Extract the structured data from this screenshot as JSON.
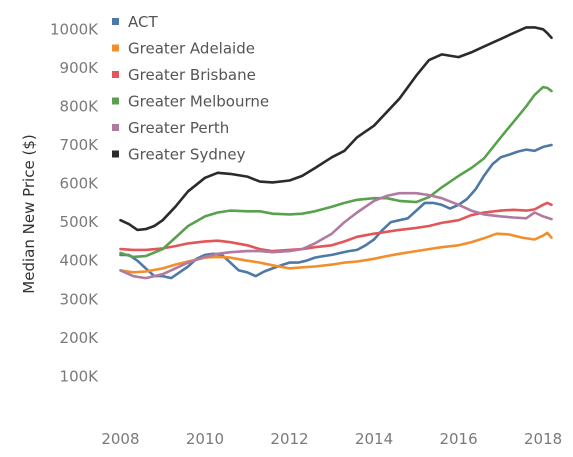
{
  "chart_data": {
    "type": "line",
    "title": "",
    "xlabel": "",
    "ylabel": "Median New Price ($)",
    "xlim": [
      2007.8,
      2018.4
    ],
    "ylim": [
      0,
      1050000
    ],
    "x_ticks": [
      {
        "value": 2008,
        "label": "2008"
      },
      {
        "value": 2010,
        "label": "2010"
      },
      {
        "value": 2012,
        "label": "2012"
      },
      {
        "value": 2014,
        "label": "2014"
      },
      {
        "value": 2016,
        "label": "2016"
      },
      {
        "value": 2018,
        "label": "2018"
      }
    ],
    "y_ticks": [
      {
        "value": 100000,
        "label": "100K"
      },
      {
        "value": 200000,
        "label": "200K"
      },
      {
        "value": 300000,
        "label": "300K"
      },
      {
        "value": 400000,
        "label": "400K"
      },
      {
        "value": 500000,
        "label": "500K"
      },
      {
        "value": 600000,
        "label": "600K"
      },
      {
        "value": 700000,
        "label": "700K"
      },
      {
        "value": 800000,
        "label": "800K"
      },
      {
        "value": 900000,
        "label": "900K"
      },
      {
        "value": 1000000,
        "label": "1000K"
      }
    ],
    "grid": false,
    "legend": "top-left",
    "series": [
      {
        "name": "ACT",
        "color": "#4e79a7",
        "points": [
          [
            2008.0,
            415000
          ],
          [
            2008.2,
            415000
          ],
          [
            2008.4,
            400000
          ],
          [
            2008.6,
            380000
          ],
          [
            2008.8,
            360000
          ],
          [
            2009.0,
            360000
          ],
          [
            2009.2,
            355000
          ],
          [
            2009.4,
            370000
          ],
          [
            2009.6,
            385000
          ],
          [
            2009.8,
            405000
          ],
          [
            2010.0,
            415000
          ],
          [
            2010.2,
            418000
          ],
          [
            2010.4,
            415000
          ],
          [
            2010.6,
            395000
          ],
          [
            2010.8,
            375000
          ],
          [
            2011.0,
            370000
          ],
          [
            2011.2,
            360000
          ],
          [
            2011.4,
            372000
          ],
          [
            2011.6,
            380000
          ],
          [
            2011.8,
            388000
          ],
          [
            2012.0,
            395000
          ],
          [
            2012.2,
            395000
          ],
          [
            2012.4,
            400000
          ],
          [
            2012.6,
            408000
          ],
          [
            2012.8,
            412000
          ],
          [
            2013.0,
            415000
          ],
          [
            2013.2,
            420000
          ],
          [
            2013.4,
            425000
          ],
          [
            2013.6,
            428000
          ],
          [
            2013.8,
            440000
          ],
          [
            2014.0,
            455000
          ],
          [
            2014.2,
            480000
          ],
          [
            2014.4,
            500000
          ],
          [
            2014.6,
            505000
          ],
          [
            2014.8,
            510000
          ],
          [
            2015.0,
            530000
          ],
          [
            2015.2,
            550000
          ],
          [
            2015.4,
            550000
          ],
          [
            2015.6,
            545000
          ],
          [
            2015.8,
            535000
          ],
          [
            2016.0,
            545000
          ],
          [
            2016.2,
            560000
          ],
          [
            2016.4,
            585000
          ],
          [
            2016.6,
            620000
          ],
          [
            2016.8,
            650000
          ],
          [
            2017.0,
            668000
          ],
          [
            2017.2,
            675000
          ],
          [
            2017.4,
            683000
          ],
          [
            2017.6,
            688000
          ],
          [
            2017.8,
            685000
          ],
          [
            2018.0,
            695000
          ],
          [
            2018.2,
            700000
          ]
        ]
      },
      {
        "name": "Greater Adelaide",
        "color": "#f28e2b",
        "points": [
          [
            2008.0,
            375000
          ],
          [
            2008.3,
            370000
          ],
          [
            2008.6,
            372000
          ],
          [
            2009.0,
            380000
          ],
          [
            2009.3,
            390000
          ],
          [
            2009.6,
            398000
          ],
          [
            2010.0,
            408000
          ],
          [
            2010.3,
            410000
          ],
          [
            2010.6,
            408000
          ],
          [
            2011.0,
            400000
          ],
          [
            2011.3,
            395000
          ],
          [
            2011.6,
            388000
          ],
          [
            2012.0,
            380000
          ],
          [
            2012.3,
            383000
          ],
          [
            2012.6,
            385000
          ],
          [
            2013.0,
            390000
          ],
          [
            2013.3,
            395000
          ],
          [
            2013.6,
            398000
          ],
          [
            2014.0,
            405000
          ],
          [
            2014.3,
            412000
          ],
          [
            2014.6,
            418000
          ],
          [
            2015.0,
            425000
          ],
          [
            2015.3,
            430000
          ],
          [
            2015.6,
            435000
          ],
          [
            2016.0,
            440000
          ],
          [
            2016.3,
            448000
          ],
          [
            2016.6,
            458000
          ],
          [
            2016.9,
            470000
          ],
          [
            2017.2,
            468000
          ],
          [
            2017.5,
            460000
          ],
          [
            2017.8,
            455000
          ],
          [
            2018.0,
            465000
          ],
          [
            2018.1,
            472000
          ],
          [
            2018.2,
            460000
          ]
        ]
      },
      {
        "name": "Greater Brisbane",
        "color": "#e15759",
        "points": [
          [
            2008.0,
            430000
          ],
          [
            2008.3,
            428000
          ],
          [
            2008.6,
            428000
          ],
          [
            2009.0,
            432000
          ],
          [
            2009.3,
            438000
          ],
          [
            2009.6,
            445000
          ],
          [
            2010.0,
            450000
          ],
          [
            2010.3,
            452000
          ],
          [
            2010.6,
            448000
          ],
          [
            2011.0,
            440000
          ],
          [
            2011.3,
            430000
          ],
          [
            2011.6,
            425000
          ],
          [
            2012.0,
            428000
          ],
          [
            2012.3,
            430000
          ],
          [
            2012.6,
            435000
          ],
          [
            2013.0,
            440000
          ],
          [
            2013.3,
            450000
          ],
          [
            2013.6,
            462000
          ],
          [
            2014.0,
            470000
          ],
          [
            2014.3,
            475000
          ],
          [
            2014.6,
            480000
          ],
          [
            2015.0,
            485000
          ],
          [
            2015.3,
            490000
          ],
          [
            2015.6,
            498000
          ],
          [
            2016.0,
            505000
          ],
          [
            2016.3,
            518000
          ],
          [
            2016.6,
            525000
          ],
          [
            2017.0,
            530000
          ],
          [
            2017.3,
            532000
          ],
          [
            2017.6,
            530000
          ],
          [
            2017.8,
            533000
          ],
          [
            2018.0,
            545000
          ],
          [
            2018.1,
            550000
          ],
          [
            2018.2,
            545000
          ]
        ]
      },
      {
        "name": "Greater Melbourne",
        "color": "#59a14f",
        "points": [
          [
            2008.0,
            420000
          ],
          [
            2008.3,
            410000
          ],
          [
            2008.6,
            412000
          ],
          [
            2009.0,
            430000
          ],
          [
            2009.3,
            460000
          ],
          [
            2009.6,
            490000
          ],
          [
            2010.0,
            515000
          ],
          [
            2010.3,
            525000
          ],
          [
            2010.6,
            530000
          ],
          [
            2011.0,
            528000
          ],
          [
            2011.3,
            528000
          ],
          [
            2011.6,
            522000
          ],
          [
            2012.0,
            520000
          ],
          [
            2012.3,
            522000
          ],
          [
            2012.6,
            528000
          ],
          [
            2013.0,
            540000
          ],
          [
            2013.3,
            550000
          ],
          [
            2013.6,
            558000
          ],
          [
            2014.0,
            562000
          ],
          [
            2014.3,
            562000
          ],
          [
            2014.6,
            555000
          ],
          [
            2015.0,
            552000
          ],
          [
            2015.3,
            565000
          ],
          [
            2015.6,
            590000
          ],
          [
            2016.0,
            620000
          ],
          [
            2016.3,
            640000
          ],
          [
            2016.6,
            665000
          ],
          [
            2017.0,
            720000
          ],
          [
            2017.3,
            760000
          ],
          [
            2017.6,
            800000
          ],
          [
            2017.8,
            830000
          ],
          [
            2018.0,
            850000
          ],
          [
            2018.1,
            848000
          ],
          [
            2018.2,
            840000
          ]
        ]
      },
      {
        "name": "Greater Perth",
        "color": "#b07aa1",
        "points": [
          [
            2008.0,
            375000
          ],
          [
            2008.3,
            360000
          ],
          [
            2008.6,
            355000
          ],
          [
            2009.0,
            365000
          ],
          [
            2009.3,
            380000
          ],
          [
            2009.6,
            395000
          ],
          [
            2010.0,
            410000
          ],
          [
            2010.3,
            418000
          ],
          [
            2010.6,
            422000
          ],
          [
            2011.0,
            425000
          ],
          [
            2011.3,
            425000
          ],
          [
            2011.6,
            422000
          ],
          [
            2012.0,
            425000
          ],
          [
            2012.3,
            430000
          ],
          [
            2012.6,
            445000
          ],
          [
            2013.0,
            470000
          ],
          [
            2013.3,
            500000
          ],
          [
            2013.6,
            525000
          ],
          [
            2014.0,
            555000
          ],
          [
            2014.3,
            568000
          ],
          [
            2014.6,
            575000
          ],
          [
            2015.0,
            575000
          ],
          [
            2015.3,
            570000
          ],
          [
            2015.6,
            562000
          ],
          [
            2016.0,
            545000
          ],
          [
            2016.3,
            530000
          ],
          [
            2016.6,
            520000
          ],
          [
            2017.0,
            515000
          ],
          [
            2017.3,
            512000
          ],
          [
            2017.6,
            510000
          ],
          [
            2017.8,
            525000
          ],
          [
            2018.0,
            515000
          ],
          [
            2018.2,
            508000
          ]
        ]
      },
      {
        "name": "Greater Sydney",
        "color": "#2b2b2b",
        "points": [
          [
            2008.0,
            505000
          ],
          [
            2008.2,
            495000
          ],
          [
            2008.4,
            480000
          ],
          [
            2008.6,
            482000
          ],
          [
            2008.8,
            490000
          ],
          [
            2009.0,
            505000
          ],
          [
            2009.3,
            540000
          ],
          [
            2009.6,
            580000
          ],
          [
            2010.0,
            615000
          ],
          [
            2010.3,
            628000
          ],
          [
            2010.6,
            625000
          ],
          [
            2011.0,
            618000
          ],
          [
            2011.3,
            605000
          ],
          [
            2011.6,
            603000
          ],
          [
            2012.0,
            608000
          ],
          [
            2012.3,
            620000
          ],
          [
            2012.6,
            640000
          ],
          [
            2013.0,
            668000
          ],
          [
            2013.3,
            685000
          ],
          [
            2013.6,
            720000
          ],
          [
            2014.0,
            750000
          ],
          [
            2014.3,
            785000
          ],
          [
            2014.6,
            820000
          ],
          [
            2015.0,
            880000
          ],
          [
            2015.3,
            920000
          ],
          [
            2015.6,
            935000
          ],
          [
            2016.0,
            928000
          ],
          [
            2016.3,
            940000
          ],
          [
            2016.6,
            955000
          ],
          [
            2017.0,
            975000
          ],
          [
            2017.3,
            990000
          ],
          [
            2017.6,
            1005000
          ],
          [
            2017.8,
            1005000
          ],
          [
            2018.0,
            1000000
          ],
          [
            2018.1,
            990000
          ],
          [
            2018.2,
            978000
          ]
        ]
      }
    ]
  }
}
